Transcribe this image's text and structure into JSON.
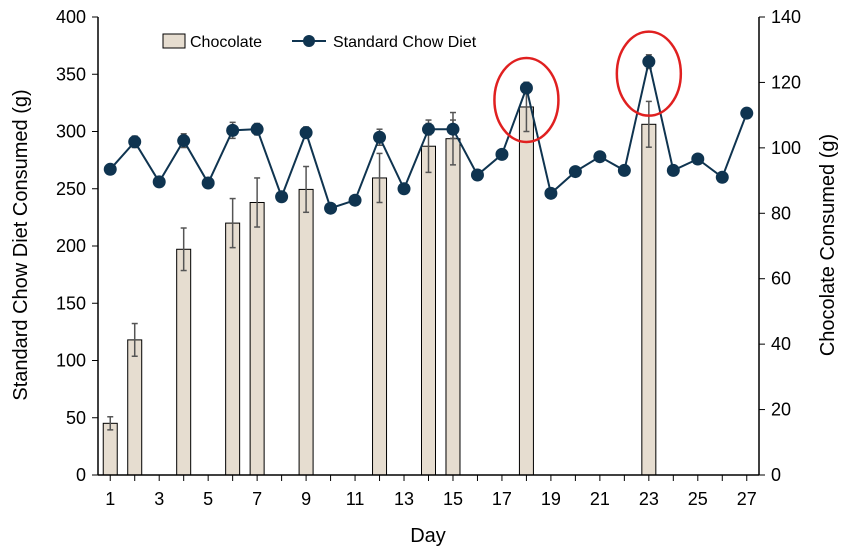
{
  "chart_data": {
    "type": "bar",
    "xlabel": "Day",
    "ylabel_left": "Standard Chow Diet Consumed (g)",
    "ylabel_right": "Chocolate Consumed (g)",
    "ylim_left": [
      0,
      400
    ],
    "ylim_right": [
      0,
      140
    ],
    "xlim": [
      0.5,
      27.5
    ],
    "x_ticks": [
      1,
      3,
      5,
      7,
      9,
      11,
      13,
      15,
      17,
      19,
      21,
      23,
      25,
      27
    ],
    "y_ticks_left": [
      0,
      50,
      100,
      150,
      200,
      250,
      300,
      350,
      400
    ],
    "y_ticks_right": [
      0,
      20,
      40,
      60,
      80,
      100,
      120,
      140
    ],
    "grid": false,
    "legend_position": "top",
    "series": [
      {
        "name": "Chocolate",
        "type": "bar",
        "axis": "right",
        "color": "#e6ddd0",
        "x": [
          1,
          2,
          4,
          6,
          7,
          9,
          12,
          14,
          15,
          18,
          23
        ],
        "values": [
          15.8,
          41.3,
          69,
          77,
          83.3,
          87.3,
          90.8,
          100.5,
          102.8,
          112.5,
          107.2
        ],
        "error": [
          2,
          5,
          6.5,
          7.5,
          7.5,
          7,
          7.5,
          8,
          8,
          7.5,
          7
        ]
      },
      {
        "name": "Standard Chow Diet",
        "type": "line",
        "axis": "left",
        "color": "#0f3450",
        "x": [
          1,
          2,
          3,
          4,
          5,
          6,
          7,
          8,
          9,
          10,
          11,
          12,
          13,
          14,
          15,
          16,
          17,
          18,
          19,
          20,
          21,
          22,
          23,
          24,
          25,
          26,
          27
        ],
        "values": [
          267,
          291,
          256,
          292,
          255,
          301,
          302,
          243,
          299,
          233,
          240,
          295,
          250,
          302,
          302,
          262,
          280,
          338,
          246,
          265,
          278,
          266,
          361,
          266,
          276,
          260,
          316
        ],
        "error": [
          3,
          5,
          3,
          6,
          4,
          7,
          5,
          3,
          5,
          3,
          3,
          7,
          3,
          5,
          8,
          3,
          3,
          5,
          3,
          4,
          3,
          3,
          6,
          3,
          3,
          3,
          4
        ]
      }
    ],
    "highlights": [
      {
        "x": 18,
        "color": "#e02020"
      },
      {
        "x": 23,
        "color": "#e02020"
      }
    ]
  }
}
